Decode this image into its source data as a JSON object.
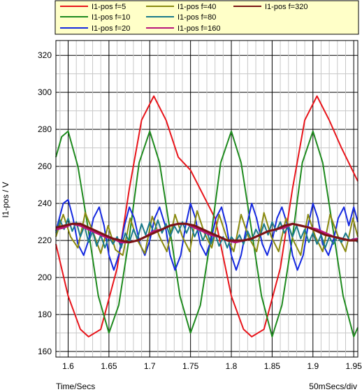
{
  "chart_data": {
    "type": "line",
    "ylabel": "I1-pos / V",
    "xlabel": "Time/Secs",
    "x_scale_label": "50mSecs/div",
    "xlim": [
      1.585,
      1.955
    ],
    "ylim": [
      157,
      328
    ],
    "x_ticks": [
      "1.6",
      "1.65",
      "1.7",
      "1.75",
      "1.8",
      "1.85",
      "1.9",
      "1.95"
    ],
    "y_ticks": [
      "160",
      "180",
      "200",
      "220",
      "240",
      "260",
      "280",
      "300",
      "320"
    ],
    "grid": true,
    "legend_position": "top",
    "series": [
      {
        "name": "I1-pos f=5",
        "color": "#e8141a",
        "x": [
          1.585,
          1.6,
          1.615,
          1.625,
          1.64,
          1.66,
          1.675,
          1.69,
          1.705,
          1.72,
          1.735,
          1.75,
          1.765,
          1.78,
          1.785,
          1.8,
          1.815,
          1.825,
          1.84,
          1.86,
          1.875,
          1.89,
          1.905,
          1.92,
          1.935,
          1.955
        ],
        "y": [
          218,
          190,
          172,
          168,
          172,
          205,
          248,
          285,
          298,
          285,
          265,
          258,
          245,
          232,
          222,
          190,
          172,
          168,
          172,
          205,
          248,
          285,
          298,
          285,
          270,
          252
        ]
      },
      {
        "name": "I1-pos f=10",
        "color": "#1e8a1e",
        "x": [
          1.585,
          1.592,
          1.6,
          1.612,
          1.625,
          1.637,
          1.65,
          1.662,
          1.675,
          1.687,
          1.7,
          1.712,
          1.725,
          1.737,
          1.75,
          1.762,
          1.775,
          1.787,
          1.8,
          1.812,
          1.825,
          1.837,
          1.85,
          1.862,
          1.875,
          1.887,
          1.9,
          1.912,
          1.925,
          1.937,
          1.95,
          1.955
        ],
        "y": [
          265,
          276,
          279,
          260,
          225,
          190,
          170,
          185,
          222,
          262,
          279,
          262,
          225,
          190,
          170,
          185,
          222,
          262,
          279,
          262,
          225,
          190,
          168,
          185,
          222,
          262,
          279,
          262,
          225,
          190,
          168,
          173
        ]
      },
      {
        "name": "I1-pos f=20",
        "color": "#1428e0",
        "x": [
          1.585,
          1.594,
          1.6,
          1.606,
          1.612,
          1.619,
          1.625,
          1.631,
          1.638,
          1.644,
          1.65,
          1.656,
          1.662,
          1.669,
          1.675,
          1.681,
          1.688,
          1.694,
          1.7,
          1.706,
          1.712,
          1.719,
          1.725,
          1.731,
          1.738,
          1.744,
          1.75,
          1.756,
          1.762,
          1.769,
          1.775,
          1.781,
          1.788,
          1.794,
          1.8,
          1.806,
          1.812,
          1.819,
          1.825,
          1.831,
          1.838,
          1.844,
          1.85,
          1.856,
          1.862,
          1.869,
          1.875,
          1.881,
          1.888,
          1.894,
          1.9,
          1.906,
          1.912,
          1.919,
          1.925,
          1.931,
          1.938,
          1.944,
          1.95,
          1.955
        ],
        "y": [
          225,
          240,
          242,
          232,
          218,
          212,
          220,
          232,
          238,
          228,
          212,
          204,
          212,
          228,
          238,
          232,
          218,
          212,
          220,
          232,
          238,
          228,
          212,
          204,
          212,
          228,
          240,
          232,
          218,
          212,
          220,
          232,
          238,
          228,
          212,
          204,
          212,
          228,
          240,
          232,
          218,
          212,
          220,
          232,
          238,
          228,
          212,
          204,
          212,
          228,
          240,
          232,
          218,
          212,
          220,
          232,
          238,
          228,
          238,
          230
        ]
      },
      {
        "name": "I1-pos f=40",
        "color": "#8a8a10",
        "x": [
          1.585,
          1.594,
          1.603,
          1.612,
          1.621,
          1.631,
          1.64,
          1.649,
          1.658,
          1.667,
          1.676,
          1.685,
          1.694,
          1.703,
          1.712,
          1.721,
          1.731,
          1.74,
          1.749,
          1.758,
          1.767,
          1.776,
          1.785,
          1.794,
          1.803,
          1.812,
          1.821,
          1.831,
          1.84,
          1.849,
          1.858,
          1.867,
          1.876,
          1.885,
          1.894,
          1.903,
          1.912,
          1.921,
          1.931,
          1.94,
          1.949,
          1.955
        ],
        "y": [
          222,
          234,
          222,
          216,
          235,
          224,
          213,
          228,
          215,
          212,
          232,
          220,
          213,
          233,
          222,
          214,
          234,
          222,
          214,
          236,
          224,
          216,
          234,
          222,
          214,
          234,
          222,
          214,
          235,
          222,
          214,
          232,
          220,
          212,
          234,
          222,
          214,
          234,
          222,
          214,
          232,
          222
        ]
      },
      {
        "name": "I1-pos f=80",
        "color": "#1a7a8a",
        "x": [
          1.585,
          1.59,
          1.595,
          1.6,
          1.605,
          1.61,
          1.615,
          1.62,
          1.625,
          1.63,
          1.635,
          1.64,
          1.645,
          1.65,
          1.655,
          1.66,
          1.665,
          1.67,
          1.675,
          1.68,
          1.685,
          1.69,
          1.695,
          1.7,
          1.705,
          1.71,
          1.715,
          1.72,
          1.725,
          1.73,
          1.735,
          1.74,
          1.745,
          1.75,
          1.755,
          1.76,
          1.765,
          1.77,
          1.775,
          1.78,
          1.785,
          1.79,
          1.795,
          1.8,
          1.805,
          1.81,
          1.815,
          1.82,
          1.825,
          1.83,
          1.835,
          1.84,
          1.845,
          1.85,
          1.855,
          1.86,
          1.865,
          1.87,
          1.875,
          1.88,
          1.885,
          1.89,
          1.895,
          1.9,
          1.905,
          1.91,
          1.915,
          1.92,
          1.925,
          1.93,
          1.935,
          1.94,
          1.945,
          1.95,
          1.955
        ],
        "y": [
          224,
          231,
          226,
          232,
          225,
          230,
          222,
          228,
          219,
          225,
          217,
          223,
          216,
          222,
          218,
          222,
          216,
          224,
          219,
          226,
          221,
          229,
          223,
          230,
          224,
          231,
          224,
          229,
          222,
          228,
          224,
          230,
          224,
          229,
          222,
          227,
          220,
          225,
          218,
          224,
          217,
          222,
          216,
          222,
          219,
          223,
          218,
          225,
          220,
          226,
          222,
          229,
          223,
          230,
          225,
          230,
          224,
          228,
          222,
          228,
          221,
          226,
          219,
          224,
          218,
          223,
          216,
          222,
          218,
          222,
          219,
          224,
          220,
          221,
          219
        ]
      },
      {
        "name": "I1-pos f=160",
        "color": "#b8147a",
        "x": [
          1.585,
          1.595,
          1.605,
          1.615,
          1.625,
          1.635,
          1.645,
          1.655,
          1.665,
          1.675,
          1.685,
          1.695,
          1.705,
          1.715,
          1.725,
          1.735,
          1.745,
          1.755,
          1.765,
          1.775,
          1.785,
          1.795,
          1.805,
          1.815,
          1.825,
          1.835,
          1.845,
          1.855,
          1.865,
          1.875,
          1.885,
          1.895,
          1.905,
          1.915,
          1.925,
          1.935,
          1.945,
          1.955
        ],
        "y": [
          226,
          227,
          229,
          228,
          226,
          224,
          222,
          221,
          219,
          219,
          220,
          222,
          225,
          226,
          228,
          229,
          229,
          227,
          225,
          223,
          222,
          220,
          219,
          220,
          221,
          223,
          225,
          226,
          227,
          229,
          228,
          227,
          226,
          224,
          222,
          221,
          220,
          221
        ]
      },
      {
        "name": "I1-pos f=320",
        "color": "#7a1414",
        "x": [
          1.585,
          1.595,
          1.605,
          1.615,
          1.625,
          1.635,
          1.645,
          1.655,
          1.665,
          1.675,
          1.685,
          1.695,
          1.705,
          1.715,
          1.725,
          1.735,
          1.745,
          1.755,
          1.765,
          1.775,
          1.785,
          1.795,
          1.805,
          1.815,
          1.825,
          1.835,
          1.845,
          1.855,
          1.865,
          1.875,
          1.885,
          1.895,
          1.905,
          1.915,
          1.925,
          1.935,
          1.945,
          1.955
        ],
        "y": [
          227,
          228,
          229,
          229,
          227,
          225,
          223,
          221,
          220,
          219,
          220,
          222,
          224,
          226,
          228,
          229,
          229,
          228,
          226,
          224,
          222,
          220,
          220,
          220,
          221,
          223,
          225,
          226,
          228,
          229,
          228,
          227,
          225,
          223,
          222,
          221,
          220,
          220
        ]
      }
    ]
  }
}
